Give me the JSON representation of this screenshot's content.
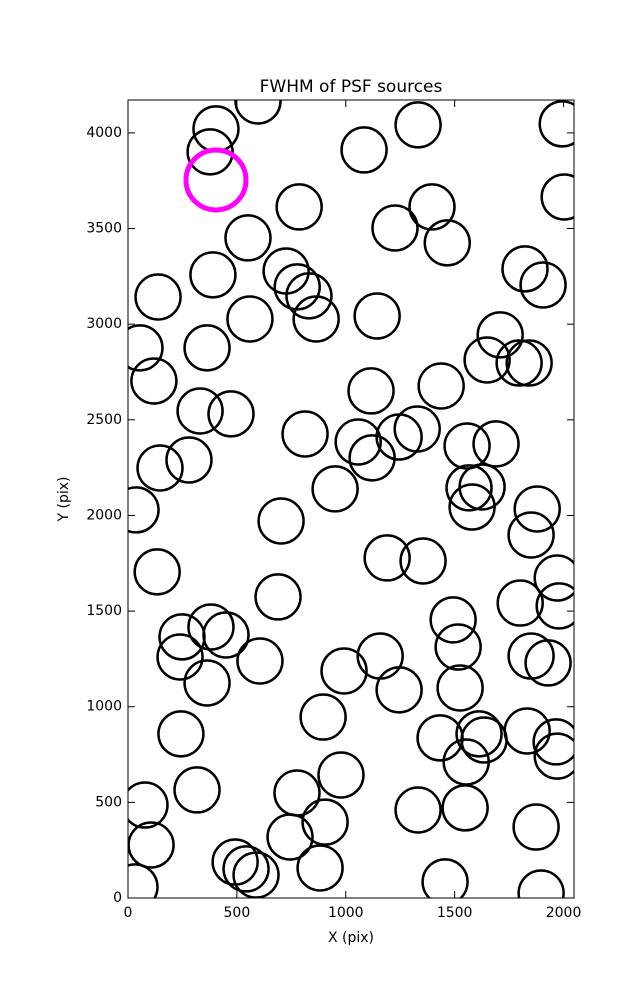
{
  "chart_data": {
    "type": "scatter",
    "title": "FWHM of PSF sources",
    "x_label": "X (pix)",
    "y_label": "Y (pix)",
    "xlim": [
      0,
      2048
    ],
    "ylim": [
      0,
      4172
    ],
    "xticks": [
      0,
      500,
      1000,
      1500,
      2000
    ],
    "yticks": [
      0,
      500,
      1000,
      1500,
      2000,
      2500,
      3000,
      3500,
      4000
    ],
    "series": [
      {
        "color": "#000000",
        "x": [
          404,
          377,
          597,
          1084,
          1332,
          1994,
          2003,
          786,
          1396,
          1226,
          1466,
          551,
          390,
          726,
          777,
          831,
          864,
          560,
          138,
          1144,
          1823,
          1906,
          55,
          363,
          119,
          1709,
          1649,
          1796,
          1842,
          1116,
          1438,
          331,
          473,
          813,
          1057,
          1121,
          1245,
          1328,
          1557,
          1690,
          280,
          147,
          37,
          951,
          1566,
          1626,
          1580,
          1879,
          1851,
          703,
          1190,
          1355,
          134,
          689,
          1971,
          1980,
          1801,
          1493,
          1516,
          381,
          450,
          248,
          239,
          606,
          1158,
          992,
          363,
          1245,
          1525,
          1851,
          1929,
          896,
          243,
          1833,
          1612,
          1635,
          1433,
          1553,
          1966,
          1971,
          978,
          317,
          776,
          905,
          78,
          1548,
          1332,
          106,
          744,
          1874,
          492,
          542,
          588,
          882,
          1456,
          1897,
          32
        ],
        "y": [
          4021,
          3901,
          4167,
          3911,
          4042,
          4047,
          3665,
          3613,
          3613,
          3503,
          3425,
          3451,
          3258,
          3278,
          3195,
          3148,
          3027,
          3027,
          3142,
          3043,
          3289,
          3205,
          2876,
          2876,
          2703,
          2944,
          2813,
          2797,
          2797,
          2651,
          2677,
          2546,
          2531,
          2426,
          2384,
          2301,
          2410,
          2452,
          2363,
          2374,
          2290,
          2248,
          2029,
          2139,
          2144,
          2149,
          2044,
          2034,
          1898,
          1971,
          1778,
          1762,
          1705,
          1574,
          1673,
          1527,
          1542,
          1454,
          1312,
          1417,
          1375,
          1365,
          1260,
          1239,
          1265,
          1187,
          1124,
          1088,
          1098,
          1265,
          1229,
          946,
          858,
          873,
          858,
          826,
          837,
          711,
          816,
          742,
          643,
          565,
          549,
          397,
          486,
          471,
          460,
          277,
          319,
          371,
          188,
          152,
          120,
          157,
          84,
          26,
          58
        ]
      },
      {
        "color": "#ff00ff",
        "x": [
          404
        ],
        "y": [
          3754
        ]
      }
    ]
  }
}
